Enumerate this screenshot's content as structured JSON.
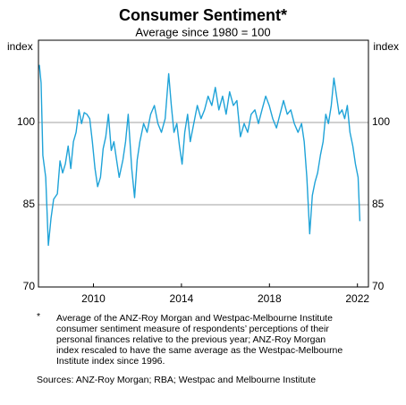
{
  "chart_data": {
    "type": "line",
    "title": "Consumer Sentiment*",
    "subtitle": "Average since 1980 = 100",
    "y_label": "index",
    "y2_label": "index",
    "xlim": [
      2008,
      2023
    ],
    "xticks": [
      {
        "value": 2010.5,
        "label": "2010"
      },
      {
        "value": 2014.5,
        "label": "2014"
      },
      {
        "value": 2018.5,
        "label": "2018"
      },
      {
        "value": 2022.5,
        "label": "2022"
      }
    ],
    "ylim": [
      70,
      115
    ],
    "yticks": [
      70,
      85,
      100
    ],
    "grid": true,
    "series": [
      {
        "name": "Consumer Sentiment",
        "color": "#1fa3d8",
        "x": [
          2008.04,
          2008.12,
          2008.2,
          2008.33,
          2008.45,
          2008.57,
          2008.69,
          2008.86,
          2008.98,
          2009.1,
          2009.22,
          2009.35,
          2009.47,
          2009.59,
          2009.71,
          2009.84,
          2009.96,
          2010.08,
          2010.2,
          2010.33,
          2010.45,
          2010.57,
          2010.69,
          2010.82,
          2010.94,
          2011.06,
          2011.18,
          2011.31,
          2011.43,
          2011.55,
          2011.67,
          2011.84,
          2011.96,
          2012.08,
          2012.24,
          2012.37,
          2012.49,
          2012.61,
          2012.78,
          2012.94,
          2013.1,
          2013.27,
          2013.43,
          2013.59,
          2013.76,
          2013.92,
          2014.04,
          2014.16,
          2014.29,
          2014.41,
          2014.53,
          2014.65,
          2014.78,
          2014.9,
          2015.06,
          2015.22,
          2015.39,
          2015.55,
          2015.71,
          2015.88,
          2016.04,
          2016.2,
          2016.37,
          2016.53,
          2016.69,
          2016.86,
          2017.02,
          2017.18,
          2017.35,
          2017.51,
          2017.67,
          2017.84,
          2018.0,
          2018.16,
          2018.33,
          2018.49,
          2018.65,
          2018.82,
          2018.98,
          2019.14,
          2019.31,
          2019.47,
          2019.63,
          2019.8,
          2019.96,
          2020.08,
          2020.2,
          2020.33,
          2020.45,
          2020.57,
          2020.69,
          2020.82,
          2020.94,
          2021.06,
          2021.18,
          2021.31,
          2021.43,
          2021.55,
          2021.67,
          2021.8,
          2021.92,
          2022.04,
          2022.16,
          2022.29,
          2022.41,
          2022.53,
          2022.61
        ],
        "values": [
          110.5,
          107.2,
          94,
          90,
          77.6,
          82.5,
          86,
          87,
          93,
          90.8,
          92.4,
          95.7,
          91.6,
          96.5,
          98.2,
          102.3,
          99.8,
          101.8,
          101.5,
          100.7,
          96.5,
          91.6,
          88.3,
          90,
          95.2,
          97.4,
          101.5,
          94.9,
          96.5,
          93.2,
          90,
          93.2,
          96.5,
          101.5,
          91.6,
          86.3,
          93.2,
          96.5,
          99.8,
          98.2,
          101.5,
          103.1,
          99.8,
          98.2,
          100.7,
          108.9,
          103.1,
          98.2,
          99.8,
          95.7,
          92.4,
          98.2,
          101.5,
          96.5,
          99.8,
          103.1,
          100.7,
          102.3,
          104.8,
          103.1,
          106.4,
          102.3,
          104.8,
          101.5,
          105.6,
          103.1,
          104,
          97.4,
          99.8,
          98.2,
          101.5,
          102.3,
          99.8,
          102.3,
          104.8,
          103.1,
          100.7,
          99,
          101.5,
          104,
          101.5,
          102.3,
          99.8,
          98.2,
          99.8,
          96.5,
          90,
          79.7,
          86.7,
          89.1,
          90.8,
          94.1,
          96.5,
          101.5,
          99.8,
          103.1,
          108.1,
          104.8,
          101.5,
          102.3,
          100.7,
          103.1,
          98.2,
          95.7,
          92.4,
          90,
          82
        ]
      }
    ],
    "notes": {
      "marker": "*",
      "lines": [
        "Average of the ANZ-Roy Morgan and Westpac-Melbourne Institute",
        "consumer sentiment measure of respondents’ perceptions of their",
        "personal finances relative to the previous year; ANZ-Roy Morgan",
        "index rescaled to have the same average as the Westpac-Melbourne",
        "Institute index since 1996."
      ]
    },
    "sources": "Sources: ANZ-Roy Morgan; RBA; Westpac and Melbourne Institute"
  }
}
